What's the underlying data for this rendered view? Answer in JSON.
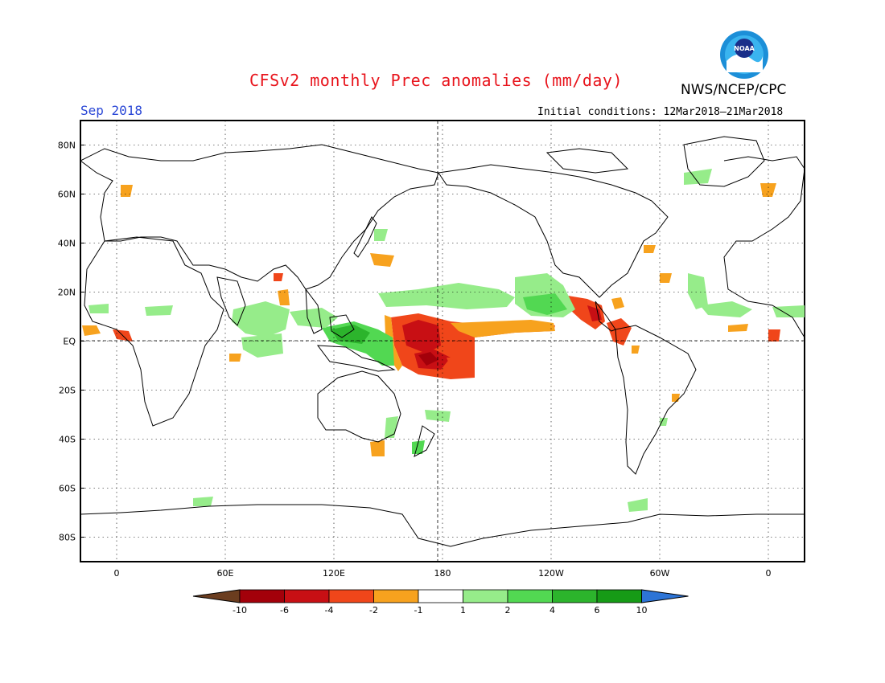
{
  "header": {
    "title": "CFSv2 monthly Prec anomalies (mm/day)",
    "org": "NWS/NCEP/CPC",
    "month": "Sep 2018",
    "initial_conditions": "Initial conditions: 12Mar2018–21Mar2018",
    "logo_text": "NOAA"
  },
  "map": {
    "lat_labels": [
      "80N",
      "60N",
      "40N",
      "20N",
      "EQ",
      "20S",
      "40S",
      "60S",
      "80S"
    ],
    "lat_values": [
      80,
      60,
      40,
      20,
      0,
      -20,
      -40,
      -60,
      -80
    ],
    "lon_labels": [
      "0",
      "60E",
      "120E",
      "180",
      "120W",
      "60W",
      "0"
    ],
    "lon_values": [
      0,
      60,
      120,
      180,
      240,
      300,
      360
    ],
    "lon_range": [
      -20,
      380
    ],
    "lat_range": [
      -90,
      90
    ],
    "grid": "dotted"
  },
  "colorbar": {
    "labels": [
      "-10",
      "-6",
      "-4",
      "-2",
      "-1",
      "1",
      "2",
      "4",
      "6",
      "10"
    ],
    "colors": [
      "#6b3d1f",
      "#a3000a",
      "#c80f14",
      "#f0461a",
      "#f7a21e",
      "#ffffff",
      "#96ec8a",
      "#52d852",
      "#2cb42c",
      "#169b16",
      "#2d74d6"
    ]
  },
  "anomaly_colors": {
    "dry_mod": "#f7a21e",
    "dry_strong": "#f0461a",
    "dry_very": "#c80f14",
    "dry_extreme": "#a3000a",
    "wet_light": "#96ec8a",
    "wet_mod": "#52d852",
    "wet_strong": "#2cb42c"
  }
}
